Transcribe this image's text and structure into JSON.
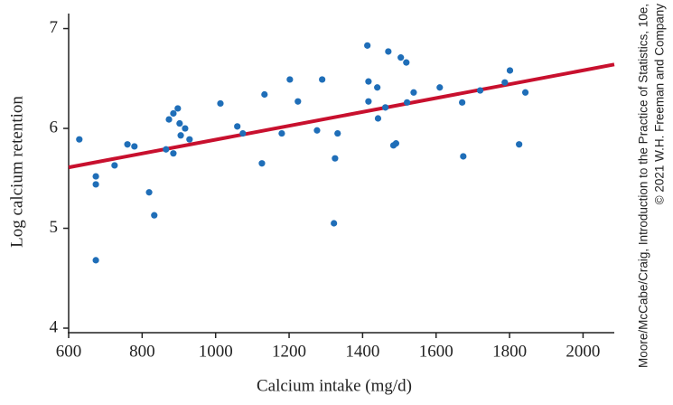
{
  "chart_data": {
    "type": "scatter",
    "xlabel": "Calcium intake (mg/d)",
    "ylabel": "Log calcium retention",
    "credit": [
      "Moore/McCabe/Craig, Introduction to the Practice of Statistics, 10e,",
      "© 2021 W.H. Freeman and Company"
    ],
    "xlim": [
      600,
      2085
    ],
    "ylim": [
      4,
      7.15
    ],
    "xticks": [
      600,
      800,
      1000,
      1200,
      1400,
      1600,
      1800,
      2000
    ],
    "yticks": [
      4,
      5,
      6,
      7
    ],
    "color": "#1f6eb8",
    "x": [
      629,
      674,
      674,
      674,
      725,
      760,
      779,
      819,
      833,
      865,
      873,
      885,
      885,
      897,
      902,
      905,
      917,
      929,
      1013,
      1059,
      1074,
      1126,
      1133,
      1180,
      1202,
      1224,
      1276,
      1290,
      1325,
      1332,
      1322,
      1413,
      1416,
      1416,
      1440,
      1442,
      1462,
      1470,
      1484,
      1491,
      1504,
      1519,
      1521,
      1539,
      1610,
      1671,
      1674,
      1720,
      1787,
      1801,
      1826,
      1843
    ],
    "y": [
      5.89,
      5.52,
      5.44,
      4.68,
      5.63,
      5.84,
      5.82,
      5.36,
      5.13,
      5.79,
      6.09,
      5.75,
      6.15,
      6.2,
      6.05,
      5.93,
      6.0,
      5.89,
      6.25,
      6.02,
      5.95,
      5.65,
      6.34,
      5.95,
      6.49,
      6.27,
      5.98,
      6.49,
      5.7,
      5.95,
      5.05,
      6.83,
      6.47,
      6.27,
      6.41,
      6.1,
      6.21,
      6.77,
      5.83,
      5.85,
      6.71,
      6.66,
      6.26,
      6.36,
      6.41,
      6.26,
      5.72,
      6.38,
      6.46,
      6.58,
      5.84,
      6.36
    ],
    "fit_line": {
      "x": [
        600,
        2085
      ],
      "y": [
        5.61,
        6.64
      ],
      "color": "#c8102e"
    }
  }
}
